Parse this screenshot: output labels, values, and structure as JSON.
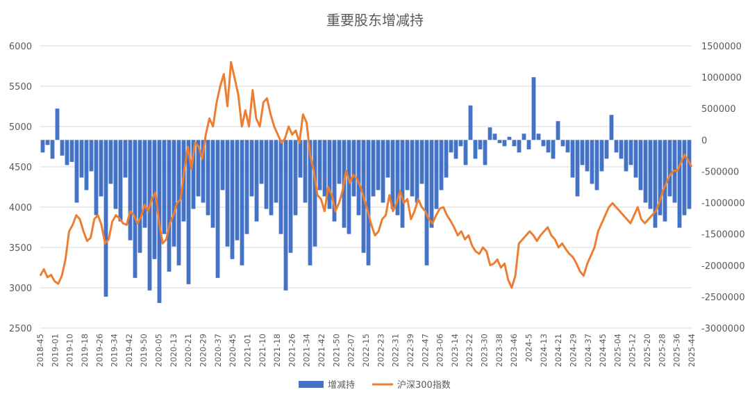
{
  "chart_data": {
    "type": "bar+line",
    "title": "重要股东增减持",
    "legend_position": "bottom",
    "grid": true,
    "colors": {
      "bar": "#4472C4",
      "line": "#ED7D31",
      "grid": "#D9D9D9",
      "axis_text": "#595959"
    },
    "y_left": {
      "min": 2500,
      "max": 6000,
      "ticks": [
        "2500",
        "3000",
        "3500",
        "4000",
        "4500",
        "5000",
        "5500",
        "6000"
      ]
    },
    "y_right": {
      "min": -3000000,
      "max": 1500000,
      "ticks": [
        "-3000000",
        "-2500000",
        "-2000000",
        "-1500000",
        "-1000000",
        "-500000",
        "0",
        "500000",
        "1000000",
        "1500000"
      ]
    },
    "x_tick_labels": [
      "2018-45",
      "2019-01",
      "2019-10",
      "2019-18",
      "2019-26",
      "2019-34",
      "2019-42",
      "2019-50",
      "2020-05",
      "2020-13",
      "2020-21",
      "2020-29",
      "2020-37",
      "2020-45",
      "2021-01",
      "2021-10",
      "2021-18",
      "2021-26",
      "2021-34",
      "2021-42",
      "2021-50",
      "2022-07",
      "2022-15",
      "2022-23",
      "2022-31",
      "2022-39",
      "2022-47",
      "2023-06",
      "2023-14",
      "2023-22",
      "2023-30",
      "2023-38",
      "2023-46",
      "2024-5",
      "2024-13",
      "2024-21",
      "2024-29",
      "2024-37",
      "2024-45",
      "2025-04",
      "2025-12",
      "2025-20",
      "2025-28",
      "2025-36",
      "2025-44"
    ],
    "series": [
      {
        "name": "增减持",
        "type": "bar",
        "axis": "right",
        "sample_values": [
          -200000,
          -80000,
          -300000,
          500000,
          -250000,
          -400000,
          -350000,
          -1000000,
          -600000,
          -800000,
          -500000,
          -1200000,
          -900000,
          -2500000,
          -700000,
          -1100000,
          -1300000,
          -600000,
          -1600000,
          -2200000,
          -1800000,
          -1400000,
          -2400000,
          -1900000,
          -2600000,
          -1500000,
          -2100000,
          -1700000,
          -2000000,
          -1300000,
          -2300000,
          -1100000,
          -900000,
          -1000000,
          -1200000,
          -1400000,
          -2200000,
          -800000,
          -1700000,
          -1900000,
          -1600000,
          -2000000,
          -1500000,
          -900000,
          -1300000,
          -700000,
          -1100000,
          -1200000,
          -1000000,
          -1500000,
          -2400000,
          -1800000,
          -1200000,
          -600000,
          -1000000,
          -2000000,
          -1700000,
          -800000,
          -900000,
          -1100000,
          -1300000,
          -700000,
          -1400000,
          -1500000,
          -900000,
          -1200000,
          -1800000,
          -2000000,
          -900000,
          -800000,
          -1000000,
          -600000,
          -1100000,
          -1200000,
          -1400000,
          -800000,
          -900000,
          -1000000,
          -700000,
          -2000000,
          -1400000,
          -1100000,
          -800000,
          -600000,
          -200000,
          -300000,
          -100000,
          -400000,
          550000,
          -300000,
          -150000,
          -400000,
          200000,
          100000,
          -50000,
          -100000,
          50000,
          -100000,
          -200000,
          100000,
          -150000,
          1000000,
          100000,
          -100000,
          -200000,
          -300000,
          300000,
          -100000,
          -200000,
          -600000,
          -900000,
          -400000,
          -500000,
          -700000,
          -800000,
          -500000,
          -300000,
          400000,
          -200000,
          -300000,
          -500000,
          -400000,
          -600000,
          -800000,
          -1000000,
          -1100000,
          -1400000,
          -1200000,
          -1300000,
          -900000,
          -1000000,
          -1400000,
          -1200000,
          -1100000
        ]
      },
      {
        "name": "沪深300指数",
        "type": "line",
        "axis": "left",
        "values": [
          3150,
          3230,
          3130,
          3160,
          3080,
          3050,
          3150,
          3350,
          3700,
          3780,
          3900,
          3850,
          3700,
          3580,
          3620,
          3850,
          3900,
          3780,
          3550,
          3600,
          3820,
          3900,
          3860,
          3800,
          3780,
          3950,
          3900,
          3800,
          3880,
          4030,
          3950,
          4100,
          4180,
          3820,
          3550,
          3600,
          3800,
          3900,
          4050,
          4100,
          4450,
          4750,
          4480,
          4800,
          4750,
          4600,
          4900,
          5100,
          5000,
          5300,
          5500,
          5650,
          5250,
          5800,
          5600,
          5400,
          5000,
          5200,
          5000,
          5450,
          5100,
          5000,
          5300,
          5350,
          5150,
          5000,
          4900,
          4800,
          4850,
          5000,
          4900,
          4950,
          4800,
          5150,
          5050,
          4650,
          4450,
          4150,
          4100,
          3950,
          4250,
          4150,
          3950,
          4050,
          4200,
          4450,
          4300,
          4400,
          4350,
          4250,
          4100,
          3950,
          3780,
          3650,
          3700,
          3850,
          3900,
          4150,
          3950,
          4050,
          4200,
          4050,
          4100,
          3850,
          3950,
          4100,
          4000,
          3950,
          3850,
          3800,
          3900,
          3980,
          4000,
          3900,
          3830,
          3750,
          3650,
          3700,
          3600,
          3650,
          3520,
          3450,
          3420,
          3500,
          3450,
          3280,
          3300,
          3350,
          3250,
          3300,
          3100,
          3000,
          3150,
          3550,
          3600,
          3650,
          3700,
          3650,
          3580,
          3650,
          3700,
          3750,
          3650,
          3600,
          3500,
          3550,
          3480,
          3420,
          3380,
          3300,
          3200,
          3150,
          3300,
          3400,
          3500,
          3700,
          3800,
          3900,
          4000,
          4050,
          4000,
          3950,
          3900,
          3850,
          3800,
          3900,
          4000,
          3850,
          3800,
          3850,
          3900,
          3950,
          4050,
          4200,
          4300,
          4400,
          4450,
          4450,
          4550,
          4650,
          4580,
          4500
        ]
      }
    ]
  }
}
